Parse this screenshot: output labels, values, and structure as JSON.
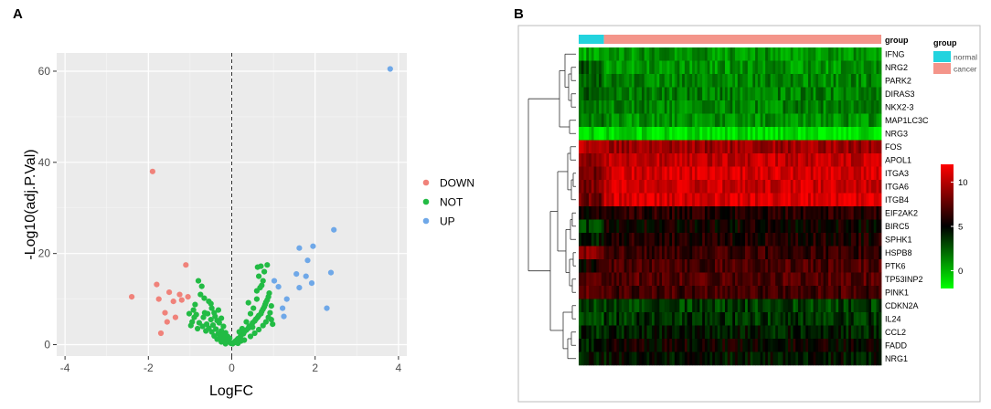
{
  "panels": {
    "a_label": "A",
    "b_label": "B"
  },
  "chart_data": [
    {
      "type": "scatter",
      "panel": "A",
      "xlabel": "LogFC",
      "ylabel": "-Log10(adj.P.Val)",
      "xlim": [
        -4.2,
        4.2
      ],
      "ylim": [
        -2.5,
        64
      ],
      "xticks": [
        -4,
        -2,
        0,
        2,
        4
      ],
      "yticks": [
        0,
        20,
        40,
        60
      ],
      "threshold_x": 0,
      "grid": true,
      "legend_position": "right",
      "series": [
        {
          "name": "DOWN",
          "color": "#F0827A",
          "points": [
            [
              -1.9,
              38
            ],
            [
              -1.1,
              17.5
            ],
            [
              -1.8,
              13.2
            ],
            [
              -1.5,
              11.5
            ],
            [
              -1.25,
              11
            ],
            [
              -2.4,
              10.5
            ],
            [
              -1.75,
              10
            ],
            [
              -1.4,
              9.5
            ],
            [
              -1.2,
              9.8
            ],
            [
              -1.05,
              10.5
            ],
            [
              -1.6,
              7
            ],
            [
              -1.35,
              6
            ],
            [
              -1.55,
              5
            ],
            [
              -1.7,
              2.5
            ]
          ]
        },
        {
          "name": "NOT",
          "color": "#22BB44",
          "points": [
            [
              -0.8,
              14
            ],
            [
              -0.72,
              12.8
            ],
            [
              -0.75,
              11
            ],
            [
              -0.66,
              10.2
            ],
            [
              -0.55,
              9.5
            ],
            [
              -0.48,
              8
            ],
            [
              -0.88,
              8.8
            ],
            [
              -0.32,
              7.6
            ],
            [
              -0.42,
              7
            ],
            [
              -0.65,
              7
            ],
            [
              -0.85,
              6.6
            ],
            [
              -0.58,
              6.8
            ],
            [
              -0.4,
              6.2
            ],
            [
              -0.25,
              5.8
            ],
            [
              -0.68,
              6
            ],
            [
              -0.5,
              5.5
            ],
            [
              -0.35,
              5.3
            ],
            [
              -0.9,
              6
            ],
            [
              -0.95,
              5
            ],
            [
              -0.78,
              4.8
            ],
            [
              -0.6,
              4.5
            ],
            [
              -0.45,
              4.3
            ],
            [
              -0.3,
              4.8
            ],
            [
              -0.2,
              4
            ],
            [
              -0.7,
              4
            ],
            [
              -0.55,
              3.6
            ],
            [
              -0.38,
              3.4
            ],
            [
              -0.25,
              3
            ],
            [
              -0.15,
              2.6
            ],
            [
              -0.48,
              2.8
            ],
            [
              -0.32,
              2.4
            ],
            [
              -0.2,
              2.1
            ],
            [
              -0.1,
              1.8
            ],
            [
              -0.28,
              1.6
            ],
            [
              -0.18,
              1.3
            ],
            [
              -0.08,
              1.1
            ],
            [
              -0.12,
              0.8
            ],
            [
              -0.05,
              0.6
            ],
            [
              -0.02,
              0.3
            ],
            [
              -0.15,
              0.2
            ],
            [
              -0.25,
              0.6
            ],
            [
              -0.05,
              1.4
            ],
            [
              -0.35,
              1.2
            ],
            [
              -0.42,
              1.9
            ],
            [
              -0.62,
              3
            ],
            [
              -0.82,
              3.5
            ],
            [
              -0.98,
              4.2
            ],
            [
              -1.02,
              6.8
            ],
            [
              -0.92,
              7.6
            ],
            [
              -0.5,
              9
            ],
            [
              0.02,
              0.2
            ],
            [
              0.05,
              0.4
            ],
            [
              0.08,
              0.7
            ],
            [
              0.12,
              1
            ],
            [
              0.15,
              1.3
            ],
            [
              0.2,
              1.6
            ],
            [
              0.22,
              2
            ],
            [
              0.28,
              2.4
            ],
            [
              0.3,
              2.8
            ],
            [
              0.35,
              3.2
            ],
            [
              0.4,
              3.6
            ],
            [
              0.42,
              4
            ],
            [
              0.48,
              4.4
            ],
            [
              0.5,
              4.8
            ],
            [
              0.55,
              5.2
            ],
            [
              0.58,
              5.6
            ],
            [
              0.62,
              6
            ],
            [
              0.65,
              6.4
            ],
            [
              0.7,
              6.8
            ],
            [
              0.72,
              7.3
            ],
            [
              0.75,
              7.8
            ],
            [
              0.78,
              8.3
            ],
            [
              0.8,
              8.8
            ],
            [
              0.82,
              9.3
            ],
            [
              0.85,
              9.8
            ],
            [
              0.88,
              10.5
            ],
            [
              0.9,
              11.3
            ],
            [
              0.6,
              11.8
            ],
            [
              0.68,
              12.5
            ],
            [
              0.72,
              13
            ],
            [
              0.75,
              14
            ],
            [
              0.65,
              15
            ],
            [
              0.78,
              16
            ],
            [
              0.62,
              17
            ],
            [
              0.7,
              17.2
            ],
            [
              0.85,
              17.5
            ],
            [
              0.3,
              1
            ],
            [
              0.45,
              1.8
            ],
            [
              0.55,
              2.5
            ],
            [
              0.65,
              3.3
            ],
            [
              0.75,
              4.2
            ],
            [
              0.82,
              5
            ],
            [
              0.88,
              6
            ],
            [
              0.92,
              7
            ],
            [
              0.95,
              5.5
            ],
            [
              0.98,
              4.5
            ],
            [
              0.35,
              5
            ],
            [
              0.45,
              6.8
            ],
            [
              0.52,
              8
            ],
            [
              0.4,
              9.2
            ],
            [
              0.25,
              3.5
            ],
            [
              0.18,
              2.8
            ],
            [
              0.1,
              0.6
            ],
            [
              0.15,
              0.3
            ],
            [
              0.22,
              0.8
            ],
            [
              0.6,
              10
            ],
            [
              0.95,
              8.5
            ],
            [
              0.5,
              3.8
            ]
          ]
        },
        {
          "name": "UP",
          "color": "#6FA8E8",
          "points": [
            [
              3.8,
              60.5
            ],
            [
              2.45,
              25.2
            ],
            [
              1.62,
              21.2
            ],
            [
              1.95,
              21.6
            ],
            [
              1.82,
              18.5
            ],
            [
              2.38,
              15.8
            ],
            [
              1.55,
              15.5
            ],
            [
              1.78,
              15
            ],
            [
              1.02,
              14
            ],
            [
              1.92,
              13.5
            ],
            [
              1.62,
              12.5
            ],
            [
              1.12,
              12.7
            ],
            [
              1.32,
              10
            ],
            [
              1.22,
              8
            ],
            [
              2.28,
              8
            ],
            [
              1.25,
              6.2
            ]
          ]
        }
      ]
    },
    {
      "type": "heatmap",
      "panel": "B",
      "annotation_title": "group",
      "legend": {
        "group_title": "group",
        "groups": [
          {
            "name": "normal",
            "color": "#22D3DE"
          },
          {
            "name": "cancer",
            "color": "#F4958A"
          }
        ],
        "color_scale": {
          "ticks": [
            0,
            5,
            10
          ],
          "min": -2,
          "max": 12,
          "low": "#00FF00",
          "mid": "#000000",
          "high": "#FF0000"
        }
      },
      "n_normal": 10,
      "n_cancer": 110,
      "rows": [
        {
          "gene": "IFNG",
          "normal": 0.5,
          "cancer": 1.0
        },
        {
          "gene": "NRG2",
          "normal": 2.8,
          "cancer": 0.9
        },
        {
          "gene": "PARK2",
          "normal": 2.2,
          "cancer": 1.3
        },
        {
          "gene": "DIRAS3",
          "normal": 3.0,
          "cancer": 1.6
        },
        {
          "gene": "NKX2-3",
          "normal": 2.0,
          "cancer": 1.4
        },
        {
          "gene": "MAP1LC3C",
          "normal": 1.5,
          "cancer": 1.0
        },
        {
          "gene": "NRG3",
          "normal": -1.0,
          "cancer": -1.2
        },
        {
          "gene": "FOS",
          "normal": 10.5,
          "cancer": 9.3
        },
        {
          "gene": "APOL1",
          "normal": 9.0,
          "cancer": 10.3
        },
        {
          "gene": "ITGA3",
          "normal": 8.0,
          "cancer": 10.8
        },
        {
          "gene": "ITGA6",
          "normal": 8.5,
          "cancer": 10.6
        },
        {
          "gene": "ITGB4",
          "normal": 8.0,
          "cancer": 11.0
        },
        {
          "gene": "EIF2AK2",
          "normal": 5.5,
          "cancer": 6.0
        },
        {
          "gene": "BIRC5",
          "normal": 3.5,
          "cancer": 5.3
        },
        {
          "gene": "SPHK1",
          "normal": 4.5,
          "cancer": 5.8
        },
        {
          "gene": "HSPB8",
          "normal": 8.5,
          "cancer": 6.5
        },
        {
          "gene": "PTK6",
          "normal": 5.5,
          "cancer": 7.0
        },
        {
          "gene": "TP53INP2",
          "normal": 7.5,
          "cancer": 7.3
        },
        {
          "gene": "PINK1",
          "normal": 7.5,
          "cancer": 6.8
        },
        {
          "gene": "CDKN2A",
          "normal": 3.0,
          "cancer": 3.3
        },
        {
          "gene": "IL24",
          "normal": 2.5,
          "cancer": 3.6
        },
        {
          "gene": "CCL2",
          "normal": 4.0,
          "cancer": 4.3
        },
        {
          "gene": "FADD",
          "normal": 4.0,
          "cancer": 5.3
        },
        {
          "gene": "NRG1",
          "normal": 4.5,
          "cancer": 4.6
        }
      ]
    }
  ]
}
